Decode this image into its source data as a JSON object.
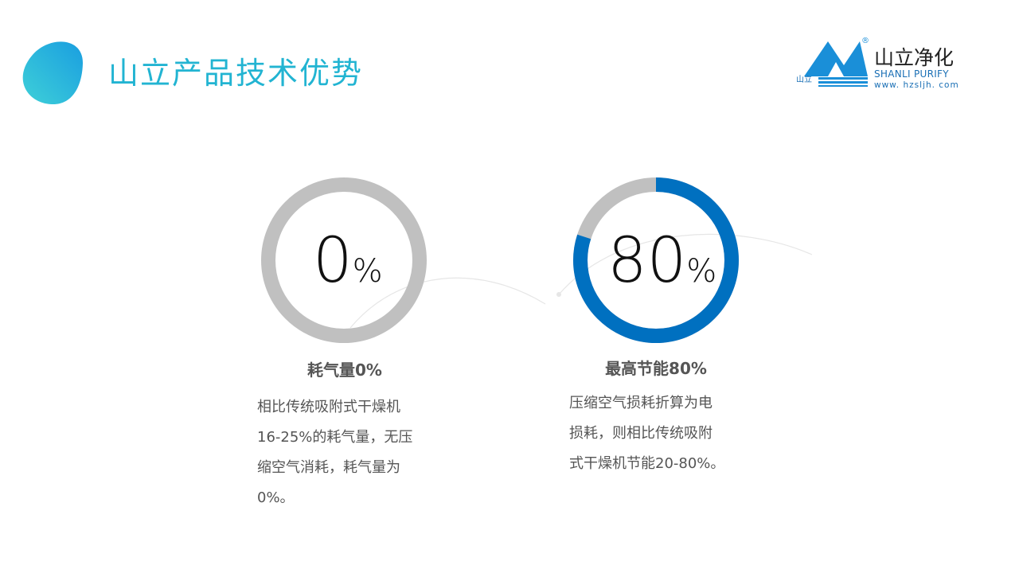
{
  "header": {
    "title": "山立产品技术优势"
  },
  "logo": {
    "brand_cn": "山立净化",
    "brand_en": "SHANLI PURIFY",
    "url": "www. hzsljh. com",
    "mark_text": "山立",
    "registered": "®"
  },
  "colors": {
    "accent": "#22b4d2",
    "ring_fill": "#0070c0",
    "ring_track": "#c0c0c0"
  },
  "cards": [
    {
      "value": "0",
      "unit": "%",
      "percent": 0,
      "heading": "耗气量0%",
      "lines": [
        "相比传统吸附式干燥机",
        "16-25%的耗气量，无压",
        "缩空气消耗，耗气量为",
        "0%。"
      ]
    },
    {
      "value": "80",
      "unit": "%",
      "percent": 80,
      "heading": "最高节能80%",
      "lines": [
        "压缩空气损耗折算为电",
        "损耗，则相比传统吸附",
        "式干燥机节能20-80%。"
      ]
    }
  ]
}
